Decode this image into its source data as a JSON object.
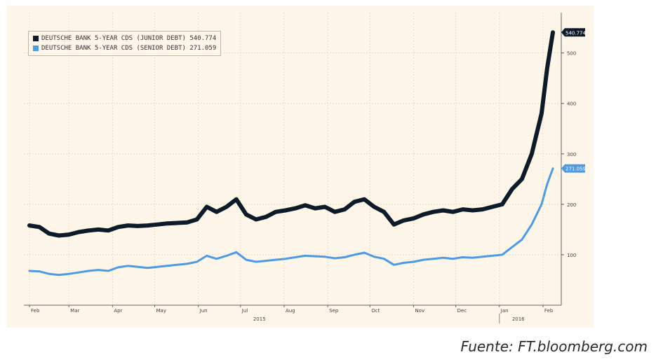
{
  "chart_data": {
    "type": "line",
    "title": "",
    "xlabel": "",
    "ylabel": "",
    "x_ticks": [
      "Feb",
      "Mar",
      "Apr",
      "May",
      "Jun",
      "Jul",
      "Aug",
      "Sep",
      "Oct",
      "Nov",
      "Dec",
      "Jan",
      "Feb"
    ],
    "year_labels": [
      "2015",
      "2016"
    ],
    "y_ticks": [
      "100",
      "200",
      "300",
      "400",
      "500"
    ],
    "ylim": [
      0,
      580
    ],
    "grid": true,
    "legend_position": "top-left",
    "series": [
      {
        "name": "DEUTSCHE BANK 5-YEAR CDS (JUNIOR DEBT) 540.774",
        "color": "#0c1a2a",
        "last_value": "540.774",
        "points": [
          [
            "2015-02-01",
            158
          ],
          [
            "2015-02-08",
            155
          ],
          [
            "2015-02-15",
            142
          ],
          [
            "2015-02-22",
            138
          ],
          [
            "2015-03-01",
            140
          ],
          [
            "2015-03-08",
            145
          ],
          [
            "2015-03-15",
            148
          ],
          [
            "2015-03-22",
            150
          ],
          [
            "2015-03-29",
            148
          ],
          [
            "2015-04-05",
            155
          ],
          [
            "2015-04-12",
            158
          ],
          [
            "2015-04-19",
            157
          ],
          [
            "2015-04-26",
            158
          ],
          [
            "2015-05-03",
            160
          ],
          [
            "2015-05-10",
            162
          ],
          [
            "2015-05-17",
            163
          ],
          [
            "2015-05-24",
            164
          ],
          [
            "2015-05-31",
            170
          ],
          [
            "2015-06-07",
            195
          ],
          [
            "2015-06-14",
            185
          ],
          [
            "2015-06-21",
            195
          ],
          [
            "2015-06-28",
            210
          ],
          [
            "2015-07-05",
            180
          ],
          [
            "2015-07-12",
            170
          ],
          [
            "2015-07-19",
            175
          ],
          [
            "2015-07-26",
            185
          ],
          [
            "2015-08-02",
            188
          ],
          [
            "2015-08-09",
            192
          ],
          [
            "2015-08-16",
            198
          ],
          [
            "2015-08-23",
            192
          ],
          [
            "2015-08-30",
            195
          ],
          [
            "2015-09-06",
            185
          ],
          [
            "2015-09-13",
            190
          ],
          [
            "2015-09-20",
            205
          ],
          [
            "2015-09-27",
            210
          ],
          [
            "2015-10-04",
            195
          ],
          [
            "2015-10-11",
            185
          ],
          [
            "2015-10-18",
            160
          ],
          [
            "2015-10-25",
            168
          ],
          [
            "2015-11-01",
            172
          ],
          [
            "2015-11-08",
            180
          ],
          [
            "2015-11-15",
            185
          ],
          [
            "2015-11-22",
            188
          ],
          [
            "2015-11-29",
            185
          ],
          [
            "2015-12-06",
            190
          ],
          [
            "2015-12-13",
            188
          ],
          [
            "2015-12-20",
            190
          ],
          [
            "2015-12-27",
            195
          ],
          [
            "2016-01-03",
            200
          ],
          [
            "2016-01-10",
            230
          ],
          [
            "2016-01-17",
            250
          ],
          [
            "2016-01-24",
            300
          ],
          [
            "2016-01-31",
            380
          ],
          [
            "2016-02-04",
            470
          ],
          [
            "2016-02-08",
            540.774
          ]
        ]
      },
      {
        "name": "DEUTSCHE BANK 5-YEAR CDS (SENIOR DEBT) 271.059",
        "color": "#4d9ae6",
        "last_value": "271.059",
        "points": [
          [
            "2015-02-01",
            68
          ],
          [
            "2015-02-08",
            67
          ],
          [
            "2015-02-15",
            62
          ],
          [
            "2015-02-22",
            60
          ],
          [
            "2015-03-01",
            62
          ],
          [
            "2015-03-08",
            65
          ],
          [
            "2015-03-15",
            68
          ],
          [
            "2015-03-22",
            70
          ],
          [
            "2015-03-29",
            68
          ],
          [
            "2015-04-05",
            75
          ],
          [
            "2015-04-12",
            78
          ],
          [
            "2015-04-19",
            76
          ],
          [
            "2015-04-26",
            74
          ],
          [
            "2015-05-03",
            76
          ],
          [
            "2015-05-10",
            78
          ],
          [
            "2015-05-17",
            80
          ],
          [
            "2015-05-24",
            82
          ],
          [
            "2015-05-31",
            86
          ],
          [
            "2015-06-07",
            98
          ],
          [
            "2015-06-14",
            92
          ],
          [
            "2015-06-21",
            98
          ],
          [
            "2015-06-28",
            105
          ],
          [
            "2015-07-05",
            90
          ],
          [
            "2015-07-12",
            86
          ],
          [
            "2015-07-19",
            88
          ],
          [
            "2015-07-26",
            90
          ],
          [
            "2015-08-02",
            92
          ],
          [
            "2015-08-09",
            95
          ],
          [
            "2015-08-16",
            98
          ],
          [
            "2015-08-23",
            97
          ],
          [
            "2015-08-30",
            96
          ],
          [
            "2015-09-06",
            93
          ],
          [
            "2015-09-13",
            95
          ],
          [
            "2015-09-20",
            100
          ],
          [
            "2015-09-27",
            104
          ],
          [
            "2015-10-04",
            96
          ],
          [
            "2015-10-11",
            92
          ],
          [
            "2015-10-18",
            80
          ],
          [
            "2015-10-25",
            84
          ],
          [
            "2015-11-01",
            86
          ],
          [
            "2015-11-08",
            90
          ],
          [
            "2015-11-15",
            92
          ],
          [
            "2015-11-22",
            94
          ],
          [
            "2015-11-29",
            92
          ],
          [
            "2015-12-06",
            95
          ],
          [
            "2015-12-13",
            94
          ],
          [
            "2015-12-20",
            96
          ],
          [
            "2015-12-27",
            98
          ],
          [
            "2016-01-03",
            100
          ],
          [
            "2016-01-10",
            115
          ],
          [
            "2016-01-17",
            130
          ],
          [
            "2016-01-24",
            160
          ],
          [
            "2016-01-31",
            200
          ],
          [
            "2016-02-04",
            240
          ],
          [
            "2016-02-08",
            271.059
          ]
        ]
      }
    ]
  },
  "source": "Fuente: FT.bloomberg.com"
}
